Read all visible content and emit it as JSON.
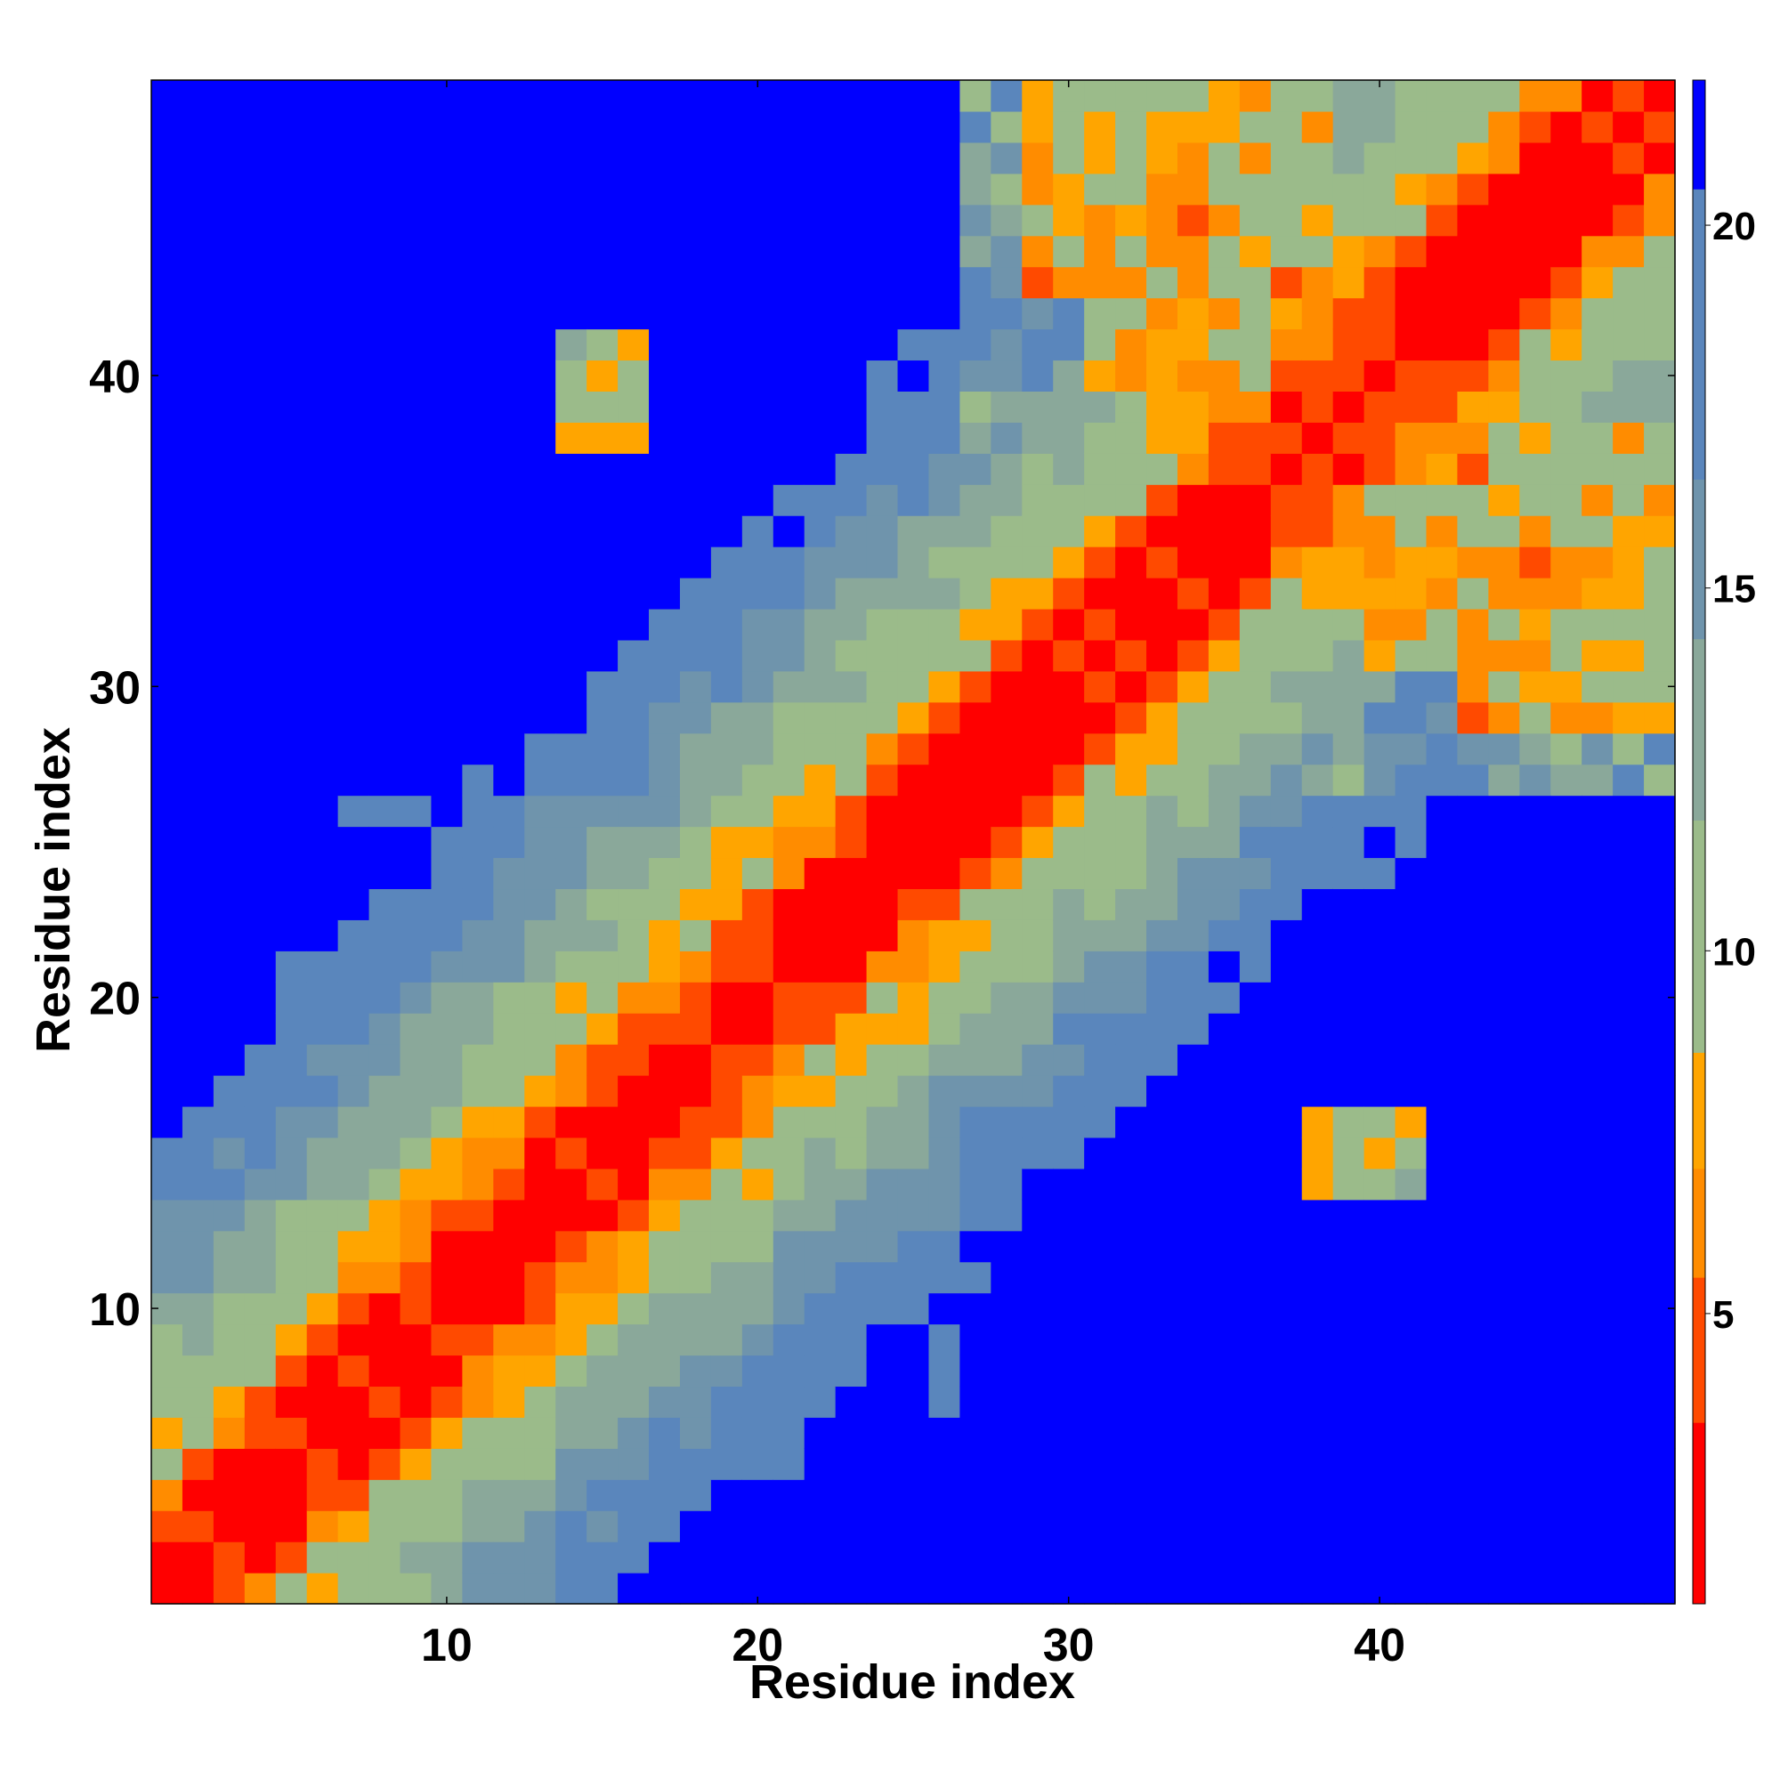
{
  "chart_data": {
    "type": "heatmap",
    "title": "",
    "xlabel": "Residue index",
    "ylabel": "Residue index",
    "n_residues": 49,
    "xlim": [
      0.5,
      49.5
    ],
    "ylim": [
      0.5,
      49.5
    ],
    "x_ticks": [
      10,
      20,
      30,
      40
    ],
    "y_ticks": [
      10,
      20,
      30,
      40
    ],
    "colorbar": {
      "min": 1,
      "max": 22,
      "ticks": [
        5,
        10,
        15,
        20
      ],
      "bands": [
        {
          "upto": 3.5,
          "color": "#ff0000"
        },
        {
          "upto": 5.5,
          "color": "#ff4a00"
        },
        {
          "upto": 7.0,
          "color": "#ff8c00"
        },
        {
          "upto": 8.6,
          "color": "#ffa500"
        },
        {
          "upto": 11.8,
          "color": "#9bbb8a"
        },
        {
          "upto": 14.3,
          "color": "#8aa89a"
        },
        {
          "upto": 16.5,
          "color": "#6f94ac"
        },
        {
          "upto": 20.5,
          "color": "#5a86bc"
        },
        {
          "upto": 22.0,
          "color": "#0000ff"
        }
      ]
    },
    "description": "Symmetric residue-residue distance map (Angstrom-like units); red diagonal band = close contacts, blue = beyond cutoff"
  }
}
